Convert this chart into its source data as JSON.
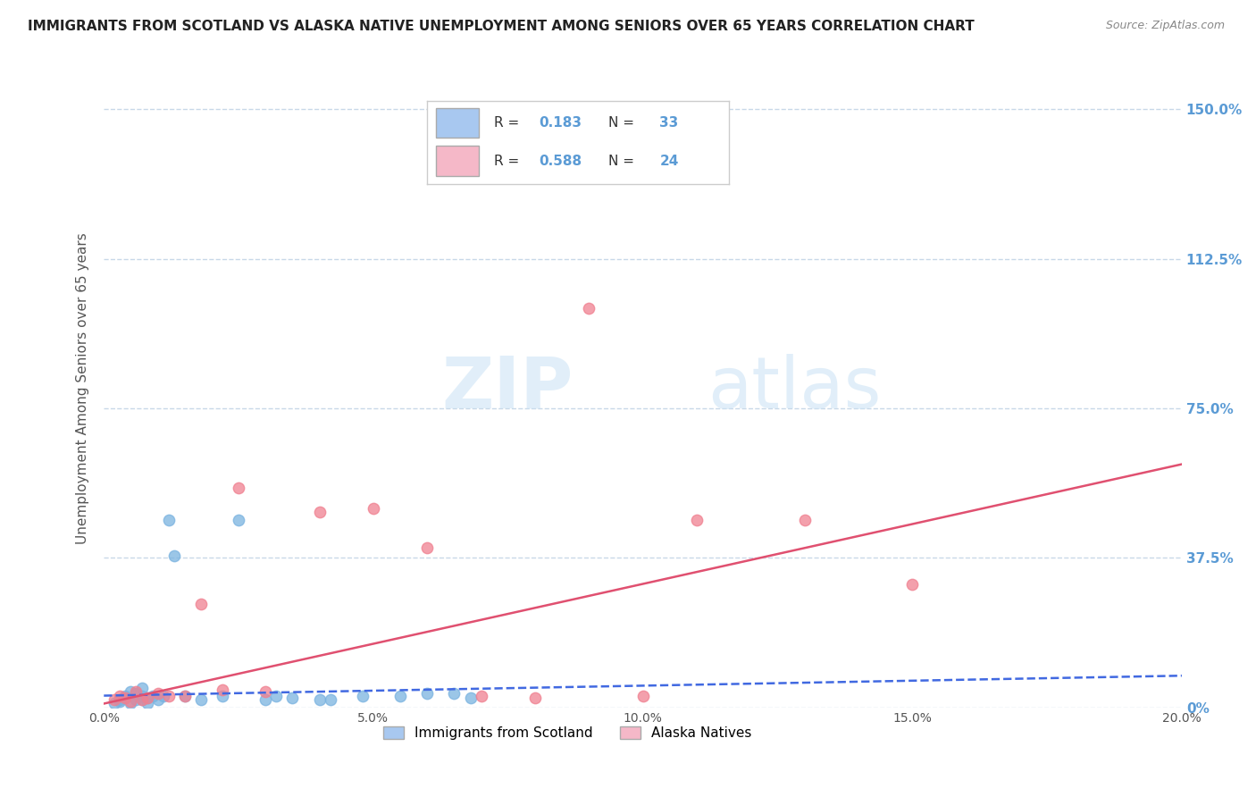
{
  "title": "IMMIGRANTS FROM SCOTLAND VS ALASKA NATIVE UNEMPLOYMENT AMONG SENIORS OVER 65 YEARS CORRELATION CHART",
  "source": "Source: ZipAtlas.com",
  "ylabel": "Unemployment Among Seniors over 65 years",
  "xlim": [
    0.0,
    0.2
  ],
  "ylim": [
    0.0,
    1.6
  ],
  "xticks": [
    0.0,
    0.05,
    0.1,
    0.15,
    0.2
  ],
  "xtick_labels": [
    "0.0%",
    "5.0%",
    "10.0%",
    "15.0%",
    "20.0%"
  ],
  "ytick_labels": [
    "0%",
    "37.5%",
    "75.0%",
    "112.5%",
    "150.0%"
  ],
  "ytick_positions": [
    0.0,
    0.375,
    0.75,
    1.125,
    1.5
  ],
  "legend_entries": [
    {
      "r_val": "0.183",
      "n_val": "33",
      "color": "#a8c8f0"
    },
    {
      "r_val": "0.588",
      "n_val": "24",
      "color": "#f5b8c8"
    }
  ],
  "scatter_blue": {
    "x": [
      0.002,
      0.003,
      0.003,
      0.004,
      0.004,
      0.005,
      0.005,
      0.006,
      0.006,
      0.007,
      0.007,
      0.007,
      0.008,
      0.008,
      0.009,
      0.01,
      0.011,
      0.012,
      0.013,
      0.015,
      0.018,
      0.022,
      0.025,
      0.03,
      0.032,
      0.035,
      0.04,
      0.042,
      0.048,
      0.055,
      0.06,
      0.065,
      0.068
    ],
    "y": [
      0.01,
      0.02,
      0.015,
      0.03,
      0.025,
      0.04,
      0.01,
      0.02,
      0.035,
      0.02,
      0.03,
      0.05,
      0.025,
      0.01,
      0.03,
      0.02,
      0.03,
      0.47,
      0.38,
      0.03,
      0.02,
      0.03,
      0.47,
      0.02,
      0.03,
      0.025,
      0.02,
      0.02,
      0.03,
      0.03,
      0.035,
      0.035,
      0.025
    ]
  },
  "scatter_pink": {
    "x": [
      0.002,
      0.003,
      0.004,
      0.005,
      0.006,
      0.007,
      0.008,
      0.01,
      0.012,
      0.015,
      0.018,
      0.022,
      0.025,
      0.03,
      0.04,
      0.05,
      0.06,
      0.07,
      0.08,
      0.09,
      0.1,
      0.11,
      0.13,
      0.15
    ],
    "y": [
      0.02,
      0.03,
      0.025,
      0.015,
      0.04,
      0.02,
      0.025,
      0.035,
      0.03,
      0.03,
      0.26,
      0.045,
      0.55,
      0.04,
      0.49,
      0.5,
      0.4,
      0.03,
      0.025,
      1.0,
      0.03,
      0.47,
      0.47,
      0.31
    ]
  },
  "trendline_blue": {
    "x_start": 0.0,
    "x_end": 0.2,
    "slope": 0.25,
    "intercept": 0.03
  },
  "trendline_pink": {
    "x_start": 0.0,
    "x_end": 0.2,
    "slope": 3.0,
    "intercept": 0.01
  },
  "color_blue_scatter": "#7ab3e0",
  "color_pink_scatter": "#f08090",
  "color_blue_line": "#4169e1",
  "color_pink_line": "#e05070",
  "color_blue_legend": "#a8c8f0",
  "color_pink_legend": "#f5b8c8",
  "watermark_zip": "ZIP",
  "watermark_atlas": "atlas",
  "background_color": "#ffffff",
  "grid_color": "#c8d8e8",
  "title_fontsize": 11,
  "axis_label_fontsize": 11,
  "tick_fontsize": 10,
  "right_tick_color": "#5b9bd5",
  "legend_bottom_labels": [
    "Immigrants from Scotland",
    "Alaska Natives"
  ]
}
